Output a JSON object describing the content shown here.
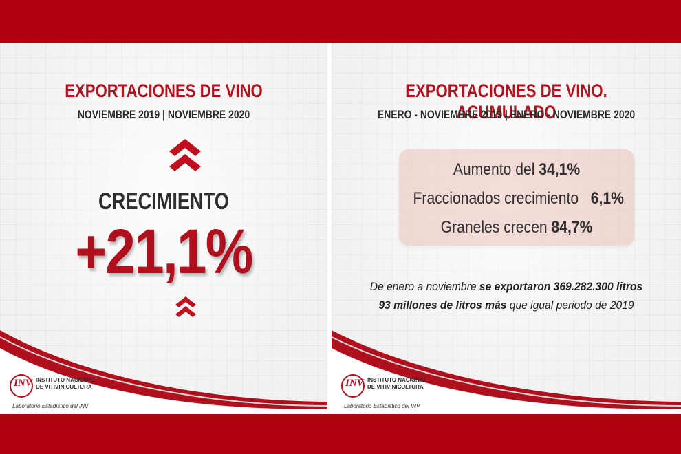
{
  "colors": {
    "brand_red": "#b00010",
    "text_dark": "#2e2e2e",
    "panel_bg": "#f1f1f1"
  },
  "left_panel": {
    "title": "EXPORTACIONES DE VINO",
    "subtitle": "NOVIEMBRE 2019 | NOVIEMBRE 2020",
    "growth_label": "CRECIMIENTO",
    "growth_value": "+21,1%",
    "icons": [
      "double-chevron-up-icon",
      "double-chevron-up-icon"
    ],
    "logo": {
      "mark": "INV",
      "line1": "INSTITUTO NACIONAL",
      "line2": "DE VITIVINICULTURA",
      "sub": "Laboratorio Estadístico del INV"
    }
  },
  "right_panel": {
    "title": "EXPORTACIONES DE VINO. ACUMULADO",
    "subtitle": "ENERO - NOVIEMBRE 2019 | ENERO - NOVIEMBRE 2020",
    "stats": [
      {
        "label": "Aumento del",
        "value": "34,1%"
      },
      {
        "label": "Fraccionados crecimiento",
        "value": "6,1%"
      },
      {
        "label": "Graneles crecen",
        "value": "84,7%"
      }
    ],
    "note_line1": {
      "prefix": "De enero a noviembre",
      "bold": "se exportaron 369.282.300 litros"
    },
    "note_line2": {
      "bold": "93 millones de litros más",
      "suffix": "que igual periodo de 2019"
    },
    "logo": {
      "mark": "INV",
      "line1": "INSTITUTO NACIONAL",
      "line2": "DE VITIVINICULTURA",
      "sub": "Laboratorio Estadístico del INV"
    }
  }
}
